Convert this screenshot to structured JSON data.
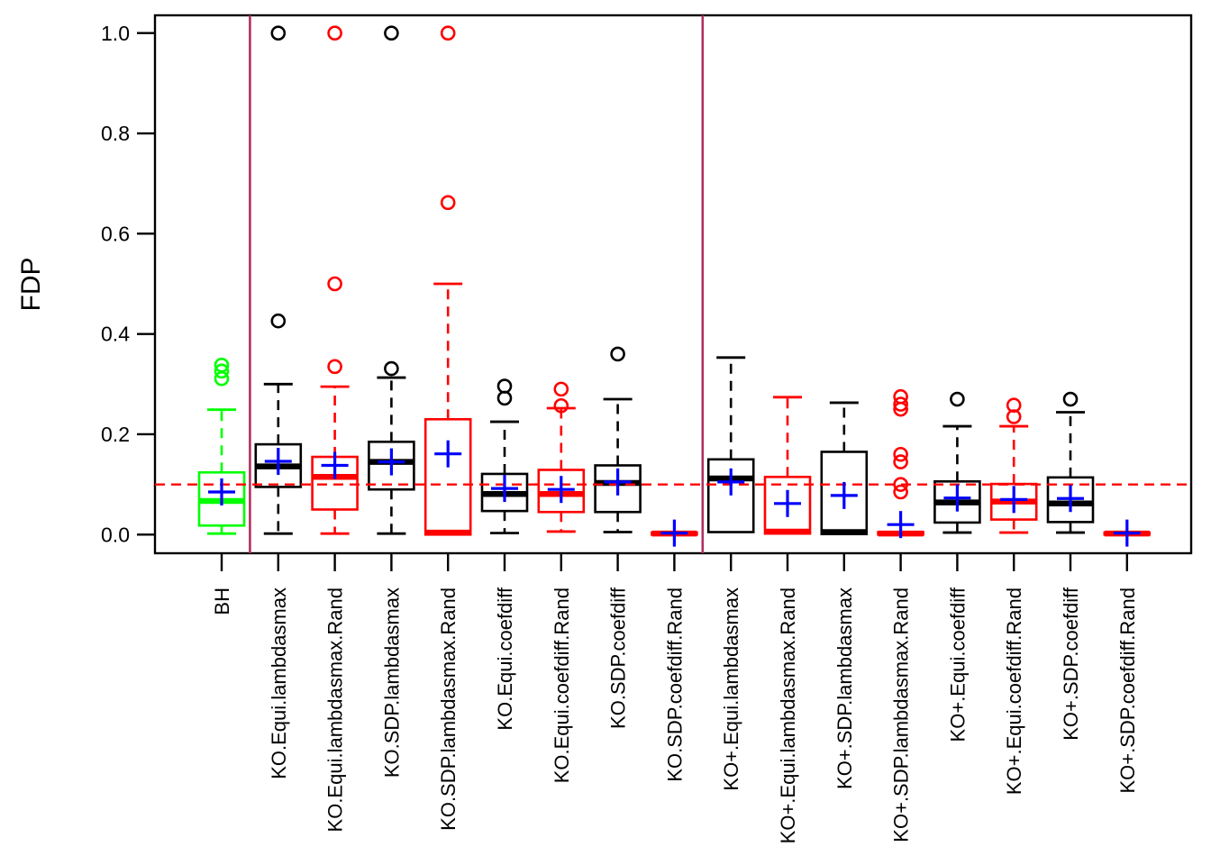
{
  "figure": {
    "background": "#FFFFFF",
    "description": "R-style boxplot of FDP by method"
  },
  "chart_data": {
    "type": "boxplot",
    "title": "",
    "xlabel": "",
    "ylabel": "FDP",
    "ylim": [
      0,
      1
    ],
    "grid": false,
    "ytick_values": [
      0,
      0.2,
      0.4,
      0.6,
      0.8,
      1.0
    ],
    "ytick_labels": [
      "0.0",
      "0.2",
      "0.4",
      "0.6",
      "0.8",
      "1.0"
    ],
    "reference_line": {
      "value": 0.1,
      "color": "#FF0000",
      "style": "dashed",
      "name": "FDR target 0.1"
    },
    "separators": {
      "after_indices": [
        0,
        8
      ],
      "color": "#B03060"
    },
    "mean_marker": {
      "symbol": "+",
      "color": "#0000FF"
    },
    "categories": [
      "BH",
      "KO.Equi.lambdasmax",
      "KO.Equi.lambdasmax.Rand",
      "KO.SDP.lambdasmax",
      "KO.SDP.lambdasmax.Rand",
      "KO.Equi.coefdiff",
      "KO.Equi.coefdiff.Rand",
      "KO.SDP.coefdiff",
      "KO.SDP.coefdiff.Rand",
      "KO+.Equi.lambdasmax",
      "KO+.Equi.lambdasmax.Rand",
      "KO+.SDP.lambdasmax",
      "KO+.SDP.lambdasmax.Rand",
      "KO+.Equi.coefdiff",
      "KO+.Equi.coefdiff.Rand",
      "KO+.SDP.coefdiff",
      "KO+.SDP.coefdiff.Rand"
    ],
    "boxes": [
      {
        "label": "BH",
        "color": "#00FF00",
        "q1": 0.018,
        "median": 0.067,
        "q3": 0.124,
        "whisker_low": 0.002,
        "whisker_high": 0.249,
        "mean": 0.085,
        "outliers": [
          0.311,
          0.326,
          0.338
        ]
      },
      {
        "label": "KO.Equi.lambdasmax",
        "color": "#000000",
        "q1": 0.095,
        "median": 0.136,
        "q3": 0.18,
        "whisker_low": 0.002,
        "whisker_high": 0.3,
        "mean": 0.146,
        "outliers": [
          0.426,
          1.0
        ]
      },
      {
        "label": "KO.Equi.lambdasmax.Rand",
        "color": "#FF0000",
        "q1": 0.05,
        "median": 0.115,
        "q3": 0.155,
        "whisker_low": 0.002,
        "whisker_high": 0.295,
        "mean": 0.138,
        "outliers": [
          0.335,
          0.5,
          1.0
        ]
      },
      {
        "label": "KO.SDP.lambdasmax",
        "color": "#000000",
        "q1": 0.09,
        "median": 0.145,
        "q3": 0.185,
        "whisker_low": 0.002,
        "whisker_high": 0.313,
        "mean": 0.145,
        "outliers": [
          0.331,
          1.0
        ]
      },
      {
        "label": "KO.SDP.lambdasmax.Rand",
        "color": "#FF0000",
        "q1": 0.0,
        "median": 0.004,
        "q3": 0.23,
        "whisker_low": 0.0,
        "whisker_high": 0.5,
        "mean": 0.161,
        "outliers": [
          0.662,
          1.0
        ]
      },
      {
        "label": "KO.Equi.coefdiff",
        "color": "#000000",
        "q1": 0.047,
        "median": 0.081,
        "q3": 0.121,
        "whisker_low": 0.003,
        "whisker_high": 0.225,
        "mean": 0.092,
        "outliers": [
          0.272,
          0.296
        ]
      },
      {
        "label": "KO.Equi.coefdiff.Rand",
        "color": "#FF0000",
        "q1": 0.045,
        "median": 0.081,
        "q3": 0.129,
        "whisker_low": 0.006,
        "whisker_high": 0.252,
        "mean": 0.09,
        "outliers": [
          0.257,
          0.29
        ]
      },
      {
        "label": "KO.SDP.coefdiff",
        "color": "#000000",
        "q1": 0.045,
        "median": 0.103,
        "q3": 0.138,
        "whisker_low": 0.005,
        "whisker_high": 0.27,
        "mean": 0.105,
        "outliers": [
          0.36
        ]
      },
      {
        "label": "KO.SDP.coefdiff.Rand",
        "color": "#FF0000",
        "q1": 0.0,
        "median": 0.002,
        "q3": 0.004,
        "whisker_low": 0.0,
        "whisker_high": 0.004,
        "mean": 0.003,
        "outliers": []
      },
      {
        "label": "KO+.Equi.lambdasmax",
        "color": "#000000",
        "q1": 0.005,
        "median": 0.112,
        "q3": 0.15,
        "whisker_low": 0.005,
        "whisker_high": 0.353,
        "mean": 0.105,
        "outliers": []
      },
      {
        "label": "KO+.Equi.lambdasmax.Rand",
        "color": "#FF0000",
        "q1": 0.002,
        "median": 0.006,
        "q3": 0.115,
        "whisker_low": 0.002,
        "whisker_high": 0.274,
        "mean": 0.062,
        "outliers": []
      },
      {
        "label": "KO+.SDP.lambdasmax",
        "color": "#000000",
        "q1": 0.001,
        "median": 0.005,
        "q3": 0.165,
        "whisker_low": 0.001,
        "whisker_high": 0.263,
        "mean": 0.078,
        "outliers": []
      },
      {
        "label": "KO+.SDP.lambdasmax.Rand",
        "color": "#FF0000",
        "q1": 0.0,
        "median": 0.002,
        "q3": 0.005,
        "whisker_low": 0.0,
        "whisker_high": 0.005,
        "mean": 0.02,
        "outliers": [
          0.085,
          0.1,
          0.145,
          0.16,
          0.25,
          0.26,
          0.275
        ]
      },
      {
        "label": "KO+.Equi.coefdiff",
        "color": "#000000",
        "q1": 0.024,
        "median": 0.064,
        "q3": 0.106,
        "whisker_low": 0.004,
        "whisker_high": 0.216,
        "mean": 0.073,
        "outliers": [
          0.27
        ]
      },
      {
        "label": "KO+.Equi.coefdiff.Rand",
        "color": "#FF0000",
        "q1": 0.03,
        "median": 0.066,
        "q3": 0.101,
        "whisker_low": 0.004,
        "whisker_high": 0.216,
        "mean": 0.07,
        "outliers": [
          0.235,
          0.258
        ]
      },
      {
        "label": "KO+.SDP.coefdiff",
        "color": "#000000",
        "q1": 0.025,
        "median": 0.062,
        "q3": 0.114,
        "whisker_low": 0.004,
        "whisker_high": 0.244,
        "mean": 0.072,
        "outliers": [
          0.27
        ]
      },
      {
        "label": "KO+.SDP.coefdiff.Rand",
        "color": "#FF0000",
        "q1": 0.0,
        "median": 0.002,
        "q3": 0.004,
        "whisker_low": 0.0,
        "whisker_high": 0.004,
        "mean": 0.003,
        "outliers": []
      }
    ]
  }
}
